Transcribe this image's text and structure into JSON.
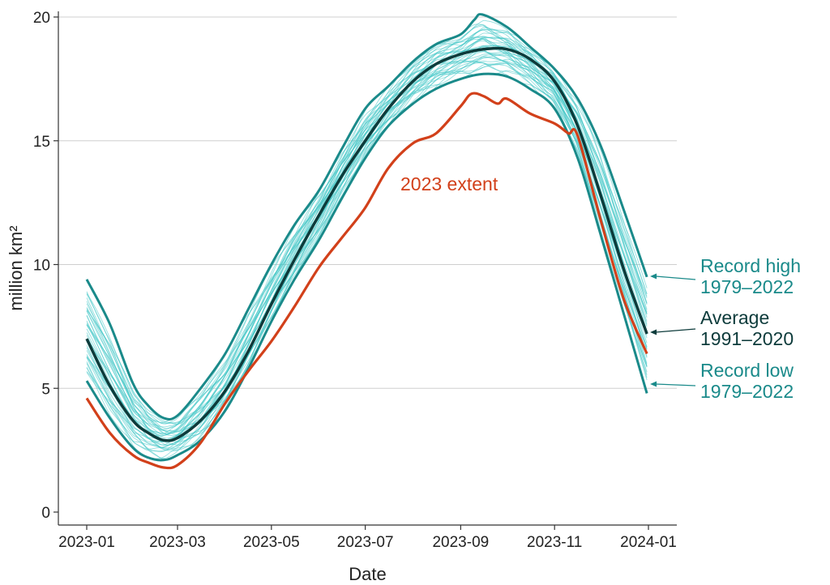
{
  "chart_data": {
    "type": "line",
    "xlabel": "Date",
    "ylabel": "million km²",
    "ylim": [
      0,
      20
    ],
    "yticks": [
      0,
      5,
      10,
      15,
      20
    ],
    "xlim": [
      "2023-01-01",
      "2024-01-01"
    ],
    "xticks": [
      "2023-01",
      "2023-03",
      "2023-05",
      "2023-07",
      "2023-09",
      "2023-11",
      "2024-01"
    ],
    "grid": "horizontal",
    "colors": {
      "teal": "#1a8a8a",
      "teal_light": "#3cc4c4",
      "average": "#0d3b3b",
      "highlight": "#d2401a"
    },
    "series": [
      {
        "name": "Record high 1979–2022",
        "label_lines": [
          "Record high",
          "1979–2022"
        ],
        "x": [
          "2023-01-01",
          "2023-01-16",
          "2023-01-31",
          "2023-02-10",
          "2023-02-20",
          "2023-03-01",
          "2023-03-16",
          "2023-04-01",
          "2023-04-16",
          "2023-05-01",
          "2023-05-16",
          "2023-06-01",
          "2023-06-16",
          "2023-07-01",
          "2023-07-16",
          "2023-08-01",
          "2023-08-16",
          "2023-09-01",
          "2023-09-10",
          "2023-09-15",
          "2023-10-01",
          "2023-10-16",
          "2023-11-01",
          "2023-11-16",
          "2023-12-01",
          "2023-12-16",
          "2023-12-31"
        ],
        "y": [
          9.4,
          7.6,
          5.2,
          4.3,
          3.8,
          3.9,
          5.0,
          6.4,
          8.2,
          10.0,
          11.6,
          13.0,
          14.7,
          16.3,
          17.2,
          18.2,
          18.9,
          19.3,
          19.9,
          20.1,
          19.6,
          18.8,
          17.9,
          16.7,
          14.8,
          12.2,
          9.5
        ]
      },
      {
        "name": "Average 1991–2020",
        "label_lines": [
          "Average",
          "1991–2020"
        ],
        "x": [
          "2023-01-01",
          "2023-01-16",
          "2023-01-31",
          "2023-02-10",
          "2023-02-20",
          "2023-03-01",
          "2023-03-16",
          "2023-04-01",
          "2023-04-16",
          "2023-05-01",
          "2023-05-16",
          "2023-06-01",
          "2023-06-16",
          "2023-07-01",
          "2023-07-16",
          "2023-08-01",
          "2023-08-16",
          "2023-09-01",
          "2023-09-16",
          "2023-10-01",
          "2023-10-16",
          "2023-11-01",
          "2023-11-16",
          "2023-12-01",
          "2023-12-16",
          "2023-12-31"
        ],
        "y": [
          7.0,
          5.1,
          3.7,
          3.2,
          2.9,
          3.0,
          3.7,
          4.9,
          6.5,
          8.4,
          10.2,
          12.0,
          13.6,
          15.0,
          16.3,
          17.4,
          18.1,
          18.5,
          18.7,
          18.7,
          18.3,
          17.4,
          15.6,
          12.8,
          9.8,
          7.2
        ]
      },
      {
        "name": "Record low 1979–2022",
        "label_lines": [
          "Record low",
          "1979–2022"
        ],
        "x": [
          "2023-01-01",
          "2023-01-16",
          "2023-01-31",
          "2023-02-10",
          "2023-02-20",
          "2023-03-01",
          "2023-03-16",
          "2023-04-01",
          "2023-04-16",
          "2023-05-01",
          "2023-05-16",
          "2023-06-01",
          "2023-06-16",
          "2023-07-01",
          "2023-07-16",
          "2023-08-01",
          "2023-08-16",
          "2023-09-01",
          "2023-09-16",
          "2023-10-01",
          "2023-10-16",
          "2023-11-01",
          "2023-11-16",
          "2023-12-01",
          "2023-12-16",
          "2023-12-31"
        ],
        "y": [
          5.3,
          3.8,
          2.6,
          2.2,
          2.1,
          2.3,
          2.9,
          4.1,
          5.8,
          7.7,
          9.4,
          11.0,
          12.7,
          14.3,
          15.6,
          16.5,
          17.1,
          17.5,
          17.7,
          17.6,
          17.1,
          16.3,
          14.3,
          11.2,
          8.0,
          4.8
        ]
      },
      {
        "name": "2023 extent",
        "label_lines": [
          "2023 extent"
        ],
        "x": [
          "2023-01-01",
          "2023-01-16",
          "2023-01-31",
          "2023-02-10",
          "2023-02-20",
          "2023-03-01",
          "2023-03-16",
          "2023-04-01",
          "2023-04-16",
          "2023-05-01",
          "2023-05-16",
          "2023-06-01",
          "2023-06-16",
          "2023-07-01",
          "2023-07-16",
          "2023-08-01",
          "2023-08-16",
          "2023-09-01",
          "2023-09-08",
          "2023-09-16",
          "2023-09-25",
          "2023-10-01",
          "2023-10-16",
          "2023-11-01",
          "2023-11-10",
          "2023-11-16",
          "2023-12-01",
          "2023-12-16",
          "2023-12-31"
        ],
        "y": [
          4.6,
          3.2,
          2.3,
          2.0,
          1.8,
          1.9,
          2.8,
          4.4,
          5.7,
          6.9,
          8.3,
          9.9,
          11.1,
          12.3,
          13.9,
          14.9,
          15.3,
          16.4,
          16.9,
          16.8,
          16.5,
          16.7,
          16.1,
          15.7,
          15.3,
          15.2,
          11.8,
          8.6,
          6.4
        ]
      }
    ]
  }
}
